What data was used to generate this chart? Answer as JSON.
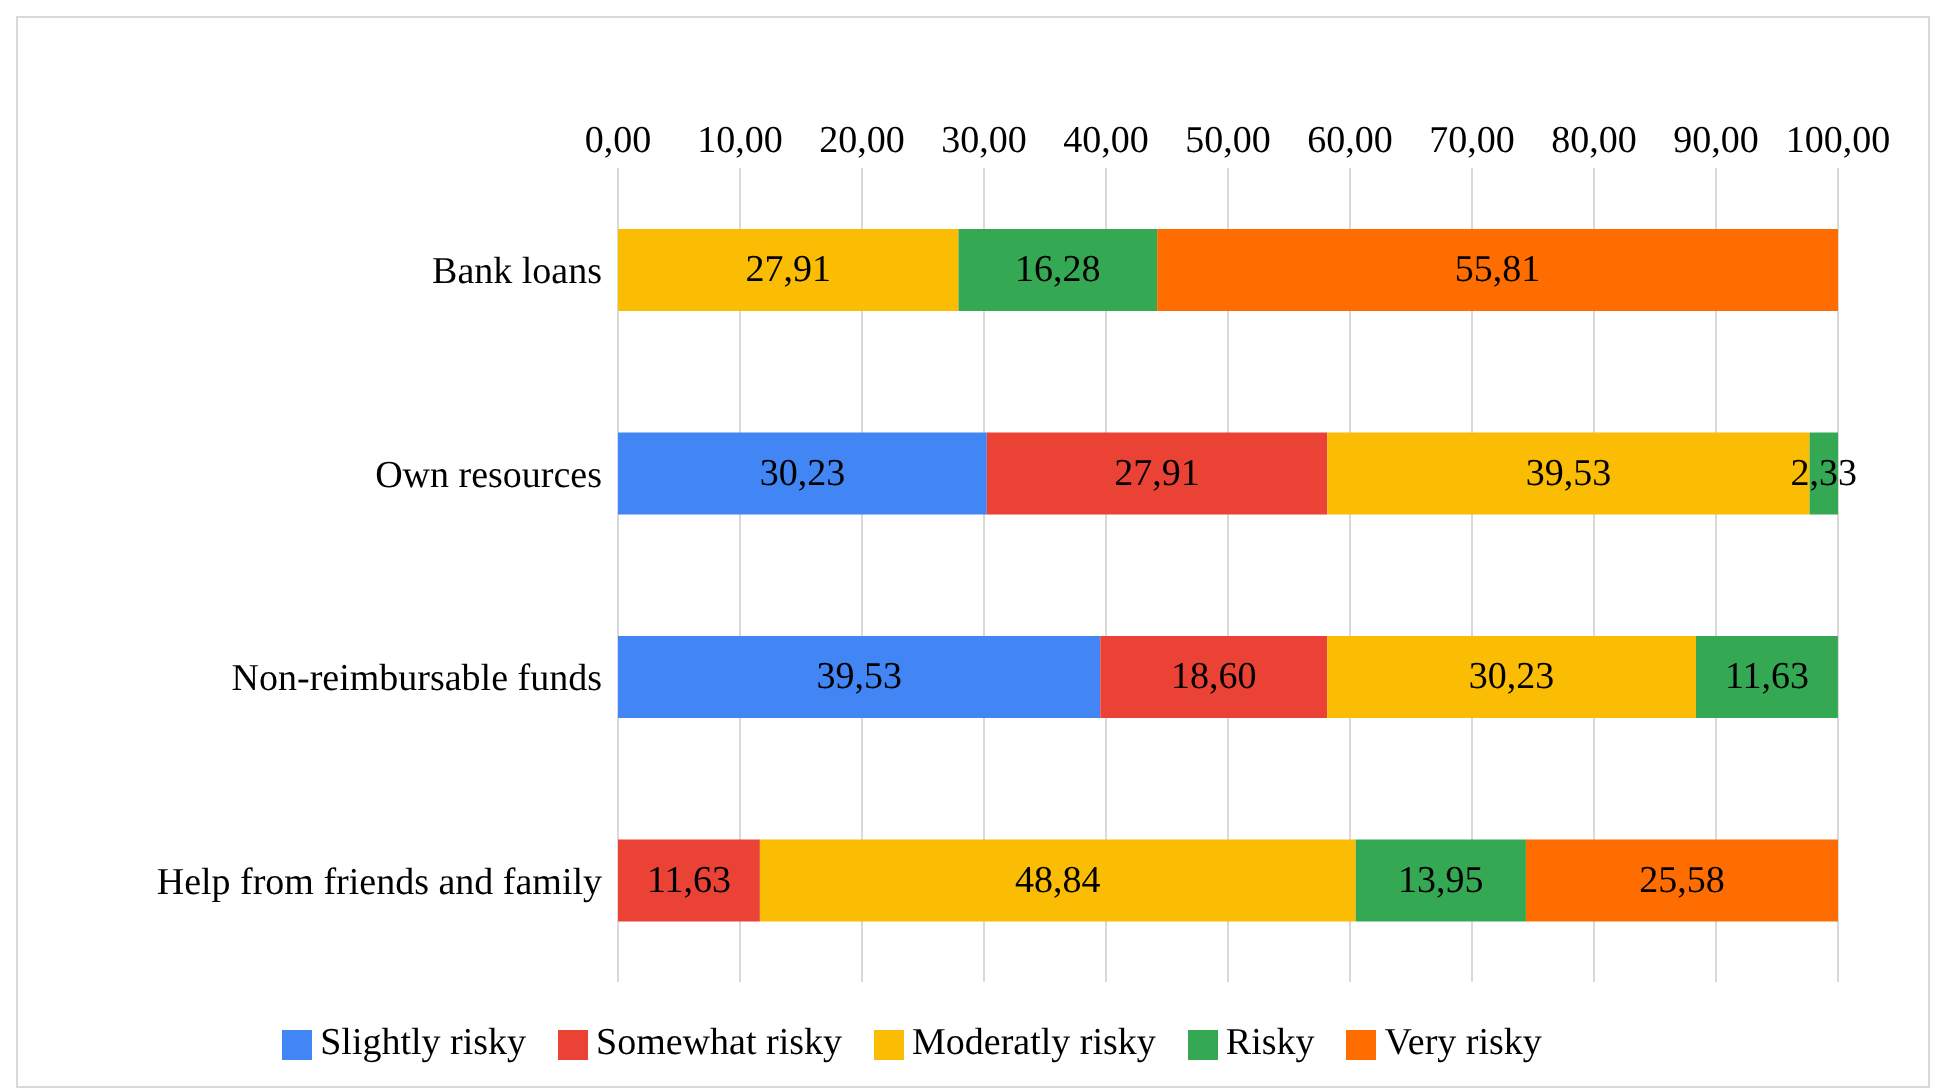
{
  "chart_data": {
    "type": "bar",
    "orientation": "horizontal",
    "stacked": true,
    "categories": [
      "Bank loans",
      "Own resources",
      "Non-reimbursable funds",
      "Help from friends and family"
    ],
    "series": [
      {
        "name": "Slightly risky",
        "color": "#4285f4",
        "values": [
          null,
          30.23,
          39.53,
          null
        ],
        "value_labels": [
          null,
          "30,23",
          "39,53",
          null
        ]
      },
      {
        "name": "Somewhat risky",
        "color": "#ea4335",
        "values": [
          null,
          27.91,
          18.6,
          11.63
        ],
        "value_labels": [
          null,
          "27,91",
          "18,60",
          "11,63"
        ]
      },
      {
        "name": "Moderatly risky",
        "color": "#fbbc04",
        "values": [
          27.91,
          39.53,
          30.23,
          48.84
        ],
        "value_labels": [
          "27,91",
          "39,53",
          "30,23",
          "48,84"
        ]
      },
      {
        "name": "Risky",
        "color": "#34a853",
        "values": [
          16.28,
          2.33,
          11.63,
          13.95
        ],
        "value_labels": [
          "16,28",
          "2,33",
          "11,63",
          "13,95"
        ]
      },
      {
        "name": "Very risky",
        "color": "#ff6d01",
        "values": [
          55.81,
          null,
          null,
          25.58
        ],
        "value_labels": [
          "55,81",
          null,
          null,
          "25,58"
        ]
      }
    ],
    "xlim": [
      0,
      100
    ],
    "xticks": [
      {
        "value": 0,
        "label": "0,00"
      },
      {
        "value": 10,
        "label": "10,00"
      },
      {
        "value": 20,
        "label": "20,00"
      },
      {
        "value": 30,
        "label": "30,00"
      },
      {
        "value": 40,
        "label": "40,00"
      },
      {
        "value": 50,
        "label": "50,00"
      },
      {
        "value": 60,
        "label": "60,00"
      },
      {
        "value": 70,
        "label": "70,00"
      },
      {
        "value": 80,
        "label": "80,00"
      },
      {
        "value": 90,
        "label": "90,00"
      },
      {
        "value": 100,
        "label": "100,00"
      }
    ],
    "grid": "x",
    "legend": "bottom"
  }
}
